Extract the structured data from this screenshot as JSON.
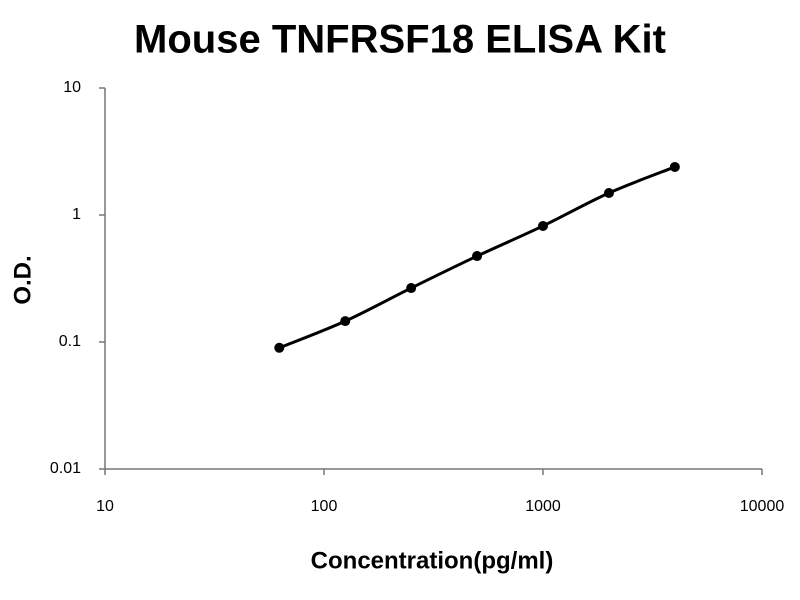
{
  "chart_data": {
    "type": "line",
    "title": "Mouse TNFRSF18 ELISA Kit",
    "xlabel": "Concentration(pg/ml)",
    "ylabel": "O.D.",
    "x": [
      62.5,
      125,
      250,
      500,
      1000,
      2000,
      4000
    ],
    "values": [
      0.09,
      0.146,
      0.266,
      0.475,
      0.82,
      1.49,
      2.39
    ],
    "color": "#000000",
    "markers": true,
    "smooth": true,
    "xscale": "log",
    "yscale": "log",
    "xlim": [
      10,
      10000
    ],
    "xticks": [
      10,
      100,
      1000,
      10000
    ],
    "ylim": [
      0.01,
      10
    ],
    "yticks": [
      0.01,
      0.1,
      1,
      10
    ]
  }
}
